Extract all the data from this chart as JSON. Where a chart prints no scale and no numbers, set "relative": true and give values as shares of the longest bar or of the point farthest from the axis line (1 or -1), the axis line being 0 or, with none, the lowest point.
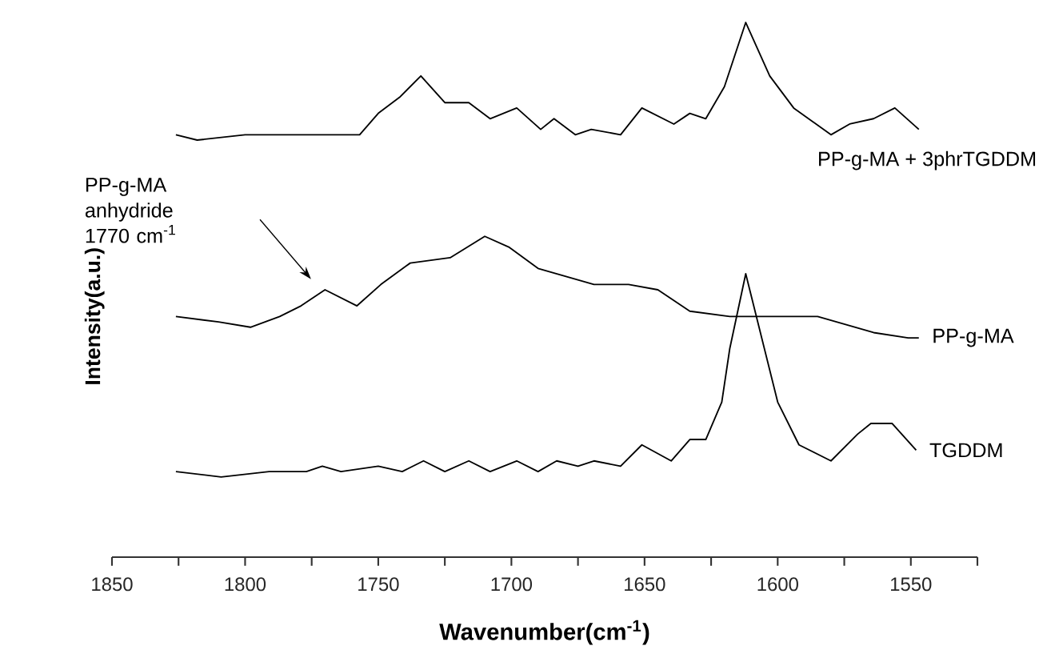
{
  "chart_data": {
    "type": "line",
    "relative": true,
    "xlabel": "Wavenumber(cm$^{-1}$)",
    "ylabel": "Intensity(a.u.)",
    "xlim": [
      1850,
      1525
    ],
    "xticks": [
      1850,
      {
        "value": 1825,
        "label": null
      },
      1800,
      {
        "value": 1775,
        "label": null
      },
      1750,
      {
        "value": 1725,
        "label": null
      },
      1700,
      {
        "value": 1675,
        "label": null
      },
      1650,
      {
        "value": 1625,
        "label": null
      },
      1600,
      {
        "value": 1575,
        "label": null
      },
      1550,
      {
        "value": 1525,
        "label": null
      }
    ],
    "annotations": [
      "PP-g-MA anhydride 1770 cm$^{-1}$"
    ],
    "series": [
      {
        "name": "PP-g-MA + 3phrTGDDM",
        "color": "#000000",
        "x": [
          1826,
          1818,
          1800,
          1792,
          1785,
          1774,
          1757,
          1750,
          1742,
          1734,
          1725,
          1716,
          1708,
          1698,
          1689,
          1684,
          1676,
          1670,
          1659,
          1651,
          1639,
          1633,
          1627,
          1620,
          1612,
          1603,
          1594,
          1580,
          1573,
          1564,
          1556,
          1547
        ],
        "values": [
          0.79,
          0.78,
          0.79,
          0.79,
          0.79,
          0.79,
          0.79,
          0.83,
          0.86,
          0.9,
          0.85,
          0.85,
          0.82,
          0.84,
          0.8,
          0.82,
          0.79,
          0.8,
          0.79,
          0.84,
          0.81,
          0.83,
          0.82,
          0.88,
          1,
          0.9,
          0.84,
          0.79,
          0.81,
          0.82,
          0.84,
          0.8
        ]
      },
      {
        "name": "PP-g-MA",
        "color": "#000000",
        "x": [
          1826,
          1810,
          1798,
          1787,
          1779,
          1770,
          1758,
          1749,
          1738,
          1723,
          1710,
          1701,
          1690,
          1669,
          1656,
          1645,
          1633,
          1618,
          1600,
          1585,
          1564,
          1551,
          1547
        ],
        "values": [
          0.45,
          0.44,
          0.43,
          0.45,
          0.47,
          0.5,
          0.47,
          0.51,
          0.55,
          0.56,
          0.6,
          0.58,
          0.54,
          0.51,
          0.51,
          0.5,
          0.46,
          0.45,
          0.45,
          0.45,
          0.42,
          0.41,
          0.41
        ]
      },
      {
        "name": "TGDDM",
        "color": "#000000",
        "x": [
          1826,
          1809,
          1791,
          1785,
          1777,
          1771,
          1764,
          1750,
          1741,
          1733,
          1725,
          1716,
          1708,
          1698,
          1690,
          1683,
          1675,
          1669,
          1659,
          1651,
          1640,
          1633,
          1627,
          1621,
          1618,
          1612,
          1605,
          1600,
          1592,
          1580,
          1570,
          1565,
          1557,
          1548
        ],
        "values": [
          0.16,
          0.15,
          0.16,
          0.16,
          0.16,
          0.17,
          0.16,
          0.17,
          0.16,
          0.18,
          0.16,
          0.18,
          0.16,
          0.18,
          0.16,
          0.18,
          0.17,
          0.18,
          0.17,
          0.21,
          0.18,
          0.22,
          0.22,
          0.29,
          0.39,
          0.53,
          0.39,
          0.29,
          0.21,
          0.18,
          0.23,
          0.25,
          0.25,
          0.2
        ]
      }
    ]
  }
}
